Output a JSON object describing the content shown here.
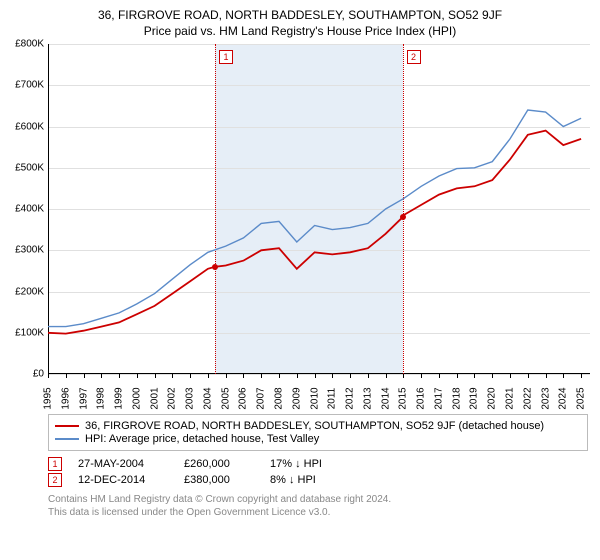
{
  "title_line1": "36, FIRGROVE ROAD, NORTH BADDESLEY, SOUTHAMPTON, SO52 9JF",
  "title_line2": "Price paid vs. HM Land Registry's House Price Index (HPI)",
  "chart": {
    "type": "line",
    "xlim": [
      1995,
      2025.5
    ],
    "ylim": [
      0,
      800
    ],
    "ytick_step": 100,
    "ytick_prefix": "£",
    "ytick_suffix": "K",
    "x_years": [
      1995,
      1996,
      1997,
      1998,
      1999,
      2000,
      2001,
      2002,
      2003,
      2004,
      2005,
      2006,
      2007,
      2008,
      2009,
      2010,
      2011,
      2012,
      2013,
      2014,
      2015,
      2016,
      2017,
      2018,
      2019,
      2020,
      2021,
      2022,
      2023,
      2024,
      2025
    ],
    "shade_from": 2004.4,
    "shade_to": 2014.95,
    "shade_color": "#e6eef7",
    "background": "#ffffff",
    "grid_color": "#e0e0e0",
    "axis_color": "#000000",
    "series": [
      {
        "name": "price_paid",
        "color": "#cc0000",
        "width": 1.8,
        "label": "36, FIRGROVE ROAD, NORTH BADDESLEY, SOUTHAMPTON, SO52 9JF (detached house)",
        "points": [
          [
            1995,
            100
          ],
          [
            1996,
            98
          ],
          [
            1997,
            105
          ],
          [
            1998,
            115
          ],
          [
            1999,
            125
          ],
          [
            2000,
            145
          ],
          [
            2001,
            165
          ],
          [
            2002,
            195
          ],
          [
            2003,
            225
          ],
          [
            2004,
            255
          ],
          [
            2004.4,
            260
          ],
          [
            2005,
            263
          ],
          [
            2006,
            275
          ],
          [
            2007,
            300
          ],
          [
            2008,
            305
          ],
          [
            2009,
            255
          ],
          [
            2010,
            295
          ],
          [
            2011,
            290
          ],
          [
            2012,
            295
          ],
          [
            2013,
            305
          ],
          [
            2014,
            340
          ],
          [
            2014.95,
            380
          ],
          [
            2015,
            385
          ],
          [
            2016,
            410
          ],
          [
            2017,
            435
          ],
          [
            2018,
            450
          ],
          [
            2019,
            455
          ],
          [
            2020,
            470
          ],
          [
            2021,
            520
          ],
          [
            2022,
            580
          ],
          [
            2023,
            590
          ],
          [
            2024,
            555
          ],
          [
            2025,
            570
          ]
        ]
      },
      {
        "name": "hpi",
        "color": "#5b8bc9",
        "width": 1.4,
        "label": "HPI: Average price, detached house, Test Valley",
        "points": [
          [
            1995,
            115
          ],
          [
            1996,
            115
          ],
          [
            1997,
            122
          ],
          [
            1998,
            135
          ],
          [
            1999,
            148
          ],
          [
            2000,
            170
          ],
          [
            2001,
            195
          ],
          [
            2002,
            230
          ],
          [
            2003,
            265
          ],
          [
            2004,
            295
          ],
          [
            2005,
            310
          ],
          [
            2006,
            330
          ],
          [
            2007,
            365
          ],
          [
            2008,
            370
          ],
          [
            2009,
            320
          ],
          [
            2010,
            360
          ],
          [
            2011,
            350
          ],
          [
            2012,
            355
          ],
          [
            2013,
            365
          ],
          [
            2014,
            400
          ],
          [
            2015,
            425
          ],
          [
            2016,
            455
          ],
          [
            2017,
            480
          ],
          [
            2018,
            498
          ],
          [
            2019,
            500
          ],
          [
            2020,
            515
          ],
          [
            2021,
            570
          ],
          [
            2022,
            640
          ],
          [
            2023,
            635
          ],
          [
            2024,
            600
          ],
          [
            2025,
            620
          ]
        ]
      }
    ],
    "markers": [
      {
        "n": "1",
        "x": 2004.4,
        "y": 260,
        "dot_color": "#cc0000"
      },
      {
        "n": "2",
        "x": 2014.95,
        "y": 380,
        "dot_color": "#cc0000"
      }
    ]
  },
  "sales": [
    {
      "n": "1",
      "date": "27-MAY-2004",
      "price": "£260,000",
      "diff": "17% ↓ HPI"
    },
    {
      "n": "2",
      "date": "12-DEC-2014",
      "price": "£380,000",
      "diff": "8% ↓ HPI"
    }
  ],
  "footer_line1": "Contains HM Land Registry data © Crown copyright and database right 2024.",
  "footer_line2": "This data is licensed under the Open Government Licence v3.0."
}
